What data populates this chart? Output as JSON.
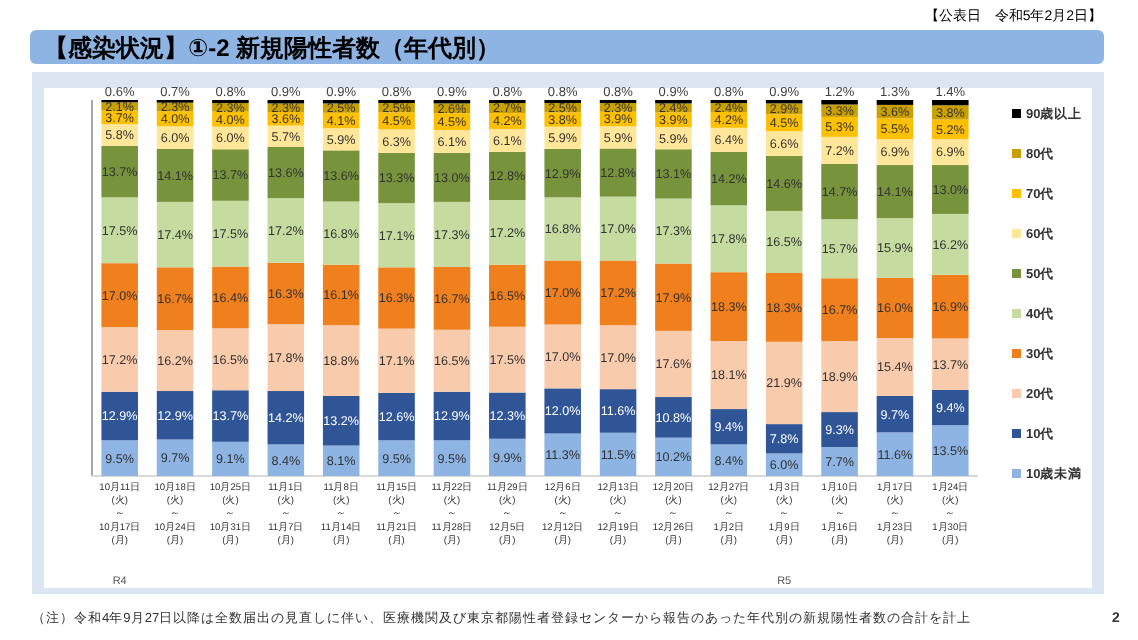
{
  "chart_data": {
    "type": "bar",
    "stacked": true,
    "title": "【感染状況】①-2 新規陽性者数（年代別）",
    "subtitle": "【公表日　令和5年2月2日】",
    "annotations": [
      "R4",
      "R5",
      "（注）令和4年9月27日以降は全数届出の見直しに伴い、医療機関及び東京都陽性者登録センターから報告のあった年代別の新規陽性者数の合計を計上",
      "2"
    ],
    "categories": [
      "10月11日\n(火)\n～\n10月17日\n(月)",
      "10月18日\n(火)\n～\n10月24日\n(月)",
      "10月25日\n(火)\n～\n10月31日\n(月)",
      "11月1日\n(火)\n～\n11月7日\n(月)",
      "11月8日\n(火)\n～\n11月14日\n(月)",
      "11月15日\n(火)\n～\n11月21日\n(月)",
      "11月22日\n(火)\n～\n11月28日\n(月)",
      "11月29日\n(火)\n～\n12月5日\n(月)",
      "12月6日\n(火)\n～\n12月12日\n(月)",
      "12月13日\n(火)\n～\n12月19日\n(月)",
      "12月20日\n(火)\n～\n12月26日\n(月)",
      "12月27日\n(火)\n～\n1月2日\n(月)",
      "1月3日\n(火)\n～\n1月9日\n(月)",
      "1月10日\n(火)\n～\n1月16日\n(月)",
      "1月17日\n(火)\n～\n1月23日\n(月)",
      "1月24日\n(火)\n～\n1月30日\n(月)"
    ],
    "legend": "right",
    "series": [
      {
        "name": "10歳未満",
        "color": "#8db4e2",
        "values": [
          9.5,
          9.7,
          9.1,
          8.4,
          8.1,
          9.5,
          9.5,
          9.9,
          11.3,
          11.5,
          10.2,
          8.4,
          6.0,
          7.7,
          11.6,
          13.5
        ],
        "value_labels": [
          "9.5%",
          "9.7%",
          "9.1%",
          "8.4%",
          "8.1%",
          "9.5%",
          "9.5%",
          "9.9%",
          "11.3%",
          "11.5%",
          "10.2%",
          "8.4%",
          "6.0%",
          "7.7%",
          "11.6%",
          "13.5%"
        ]
      },
      {
        "name": "10代",
        "color": "#2f5597",
        "values": [
          12.9,
          12.9,
          13.7,
          14.2,
          13.2,
          12.6,
          12.9,
          12.3,
          12.0,
          11.6,
          10.8,
          9.4,
          7.8,
          9.3,
          9.7,
          9.4
        ],
        "value_labels": [
          "12.9%",
          "12.9%",
          "13.7%",
          "14.2%",
          "13.2%",
          "12.6%",
          "12.9%",
          "12.3%",
          "12.0%",
          "11.6%",
          "10.8%",
          "9.4%",
          "7.8%",
          "9.3%",
          "9.7%",
          "9.4%"
        ]
      },
      {
        "name": "20代",
        "color": "#f8cbad",
        "values": [
          17.2,
          16.2,
          16.5,
          17.8,
          18.8,
          17.1,
          16.5,
          17.5,
          17.0,
          17.0,
          17.6,
          18.1,
          21.9,
          18.9,
          15.4,
          13.7
        ],
        "value_labels": [
          "17.2%",
          "16.2%",
          "16.5%",
          "17.8%",
          "18.8%",
          "17.1%",
          "16.5%",
          "17.5%",
          "17.0%",
          "17.0%",
          "17.6%",
          "18.1%",
          "21.9%",
          "18.9%",
          "15.4%",
          "13.7%"
        ]
      },
      {
        "name": "30代",
        "color": "#f07f1e",
        "values": [
          17.0,
          16.7,
          16.4,
          16.3,
          16.1,
          16.3,
          16.7,
          16.5,
          17.0,
          17.2,
          17.9,
          18.3,
          18.3,
          16.7,
          16.0,
          16.9
        ],
        "value_labels": [
          "17.0%",
          "16.7%",
          "16.4%",
          "16.3%",
          "16.1%",
          "16.3%",
          "16.7%",
          "16.5%",
          "17.0%",
          "17.2%",
          "17.9%",
          "18.3%",
          "18.3%",
          "16.7%",
          "16.0%",
          "16.9%"
        ]
      },
      {
        "name": "40代",
        "color": "#c5dba0",
        "values": [
          17.5,
          17.4,
          17.5,
          17.2,
          16.8,
          17.1,
          17.3,
          17.2,
          16.8,
          17.0,
          17.3,
          17.8,
          16.5,
          15.7,
          15.9,
          16.2
        ],
        "value_labels": [
          "17.5%",
          "17.4%",
          "17.5%",
          "17.2%",
          "16.8%",
          "17.1%",
          "17.3%",
          "17.2%",
          "16.8%",
          "17.0%",
          "17.3%",
          "17.8%",
          "16.5%",
          "15.7%",
          "15.9%",
          "16.2%"
        ]
      },
      {
        "name": "50代",
        "color": "#77933c",
        "values": [
          13.7,
          14.1,
          13.7,
          13.6,
          13.6,
          13.3,
          13.0,
          12.8,
          12.9,
          12.8,
          13.1,
          14.2,
          14.6,
          14.7,
          14.1,
          13.0
        ],
        "value_labels": [
          "13.7%",
          "14.1%",
          "13.7%",
          "13.6%",
          "13.6%",
          "13.3%",
          "13.0%",
          "12.8%",
          "12.9%",
          "12.8%",
          "13.1%",
          "14.2%",
          "14.6%",
          "14.7%",
          "14.1%",
          "13.0%"
        ]
      },
      {
        "name": "60代",
        "color": "#ffe699",
        "values": [
          5.8,
          6.0,
          6.0,
          5.7,
          5.9,
          6.3,
          6.1,
          6.1,
          5.9,
          5.9,
          5.9,
          6.4,
          6.6,
          7.2,
          6.9,
          6.9
        ],
        "value_labels": [
          "5.8%",
          "6.0%",
          "6.0%",
          "5.7%",
          "5.9%",
          "6.3%",
          "6.1%",
          "6.1%",
          "5.9%",
          "5.9%",
          "5.9%",
          "6.4%",
          "6.6%",
          "7.2%",
          "6.9%",
          "6.9%"
        ]
      },
      {
        "name": "70代",
        "color": "#ffc000",
        "values": [
          3.7,
          4.0,
          4.0,
          3.6,
          4.1,
          4.5,
          4.5,
          4.2,
          3.8,
          3.9,
          3.9,
          4.2,
          4.5,
          5.3,
          5.5,
          5.2
        ],
        "value_labels": [
          "3.7%",
          "4.0%",
          "4.0%",
          "3.6%",
          "4.1%",
          "4.5%",
          "4.5%",
          "4.2%",
          "3.8%",
          "3.9%",
          "3.9%",
          "4.2%",
          "4.5%",
          "5.3%",
          "5.5%",
          "5.2%"
        ]
      },
      {
        "name": "80代",
        "color": "#c9a000",
        "values": [
          2.1,
          2.3,
          2.3,
          2.3,
          2.5,
          2.5,
          2.6,
          2.7,
          2.5,
          2.3,
          2.4,
          2.4,
          2.9,
          3.3,
          3.6,
          3.8
        ],
        "value_labels": [
          "2.1%",
          "2.3%",
          "2.3%",
          "2.3%",
          "2.5%",
          "2.5%",
          "2.6%",
          "2.7%",
          "2.5%",
          "2.3%",
          "2.4%",
          "2.4%",
          "2.9%",
          "3.3%",
          "3.6%",
          "3.8%"
        ]
      },
      {
        "name": "90歳以上",
        "color": "#000000",
        "values": [
          0.6,
          0.7,
          0.8,
          0.9,
          0.9,
          0.8,
          0.9,
          0.8,
          0.8,
          0.8,
          0.9,
          0.8,
          0.9,
          1.2,
          1.3,
          1.4
        ],
        "value_labels": [
          "0.6%",
          "0.7%",
          "0.8%",
          "0.9%",
          "0.9%",
          "0.8%",
          "0.9%",
          "0.8%",
          "0.8%",
          "0.8%",
          "0.9%",
          "0.8%",
          "0.9%",
          "1.2%",
          "1.3%",
          "1.4%"
        ]
      }
    ]
  }
}
